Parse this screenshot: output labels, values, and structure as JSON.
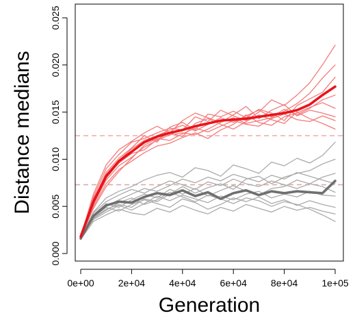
{
  "chart_data": {
    "type": "line",
    "title": "",
    "xlabel": "Generation",
    "ylabel": "Distance medians",
    "xlim": [
      0,
      100000
    ],
    "ylim": [
      0,
      0.025
    ],
    "grid": false,
    "x_ticks": [
      {
        "value": 0,
        "label": "0e+00"
      },
      {
        "value": 20000,
        "label": "2e+04"
      },
      {
        "value": 40000,
        "label": "4e+04"
      },
      {
        "value": 60000,
        "label": "6e+04"
      },
      {
        "value": 80000,
        "label": "8e+04"
      },
      {
        "value": 100000,
        "label": "1e+05"
      }
    ],
    "y_ticks": [
      {
        "value": 0.0,
        "label": "0.000"
      },
      {
        "value": 0.005,
        "label": "0.005"
      },
      {
        "value": 0.01,
        "label": "0.010"
      },
      {
        "value": 0.015,
        "label": "0.015"
      },
      {
        "value": 0.02,
        "label": "0.020"
      },
      {
        "value": 0.025,
        "label": "0.025"
      }
    ],
    "x": [
      0,
      5000,
      10000,
      15000,
      20000,
      25000,
      30000,
      35000,
      40000,
      45000,
      50000,
      55000,
      60000,
      65000,
      70000,
      75000,
      80000,
      85000,
      90000,
      95000,
      100000
    ],
    "colors": {
      "red_mean": "#e8141b",
      "red_rep": "#f37a7a",
      "gray_mean": "#6f6f6f",
      "gray_rep": "#a9a9a9",
      "red_ref": "#f4a6a6",
      "gray_ref": "#e0a8a8"
    },
    "reference_lines": [
      {
        "y": 0.0125,
        "color_key": "red_ref"
      },
      {
        "y": 0.0073,
        "color_key": "gray_ref"
      }
    ],
    "series": [
      {
        "group": "red",
        "role": "mean",
        "values": [
          0.0018,
          0.0055,
          0.0082,
          0.0098,
          0.0108,
          0.0118,
          0.0124,
          0.0128,
          0.0131,
          0.0135,
          0.0138,
          0.0141,
          0.0142,
          0.0143,
          0.0145,
          0.0147,
          0.0149,
          0.0152,
          0.0158,
          0.0168,
          0.0177
        ]
      },
      {
        "group": "red",
        "role": "replicate",
        "values": [
          0.0017,
          0.006,
          0.009,
          0.0105,
          0.0118,
          0.0122,
          0.0128,
          0.0133,
          0.0131,
          0.0145,
          0.014,
          0.0152,
          0.0146,
          0.0141,
          0.015,
          0.0163,
          0.0157,
          0.0168,
          0.0181,
          0.02,
          0.0221
        ]
      },
      {
        "group": "red",
        "role": "replicate",
        "values": [
          0.0018,
          0.0052,
          0.0078,
          0.0093,
          0.0102,
          0.0113,
          0.012,
          0.0126,
          0.0128,
          0.0126,
          0.0132,
          0.0139,
          0.0144,
          0.0138,
          0.0141,
          0.0144,
          0.0151,
          0.0159,
          0.017,
          0.0186,
          0.02
        ]
      },
      {
        "group": "red",
        "role": "replicate",
        "values": [
          0.0019,
          0.0057,
          0.0086,
          0.0101,
          0.0112,
          0.0125,
          0.0118,
          0.0134,
          0.0139,
          0.0131,
          0.0148,
          0.0145,
          0.0151,
          0.0144,
          0.0153,
          0.0149,
          0.0141,
          0.0157,
          0.0164,
          0.0171,
          0.0187
        ]
      },
      {
        "group": "red",
        "role": "replicate",
        "values": [
          0.0016,
          0.005,
          0.0074,
          0.0089,
          0.0098,
          0.0107,
          0.0114,
          0.0117,
          0.0123,
          0.0128,
          0.0122,
          0.0131,
          0.0137,
          0.0147,
          0.0139,
          0.0136,
          0.0145,
          0.0149,
          0.0155,
          0.016,
          0.0154
        ]
      },
      {
        "group": "red",
        "role": "replicate",
        "values": [
          0.0018,
          0.0063,
          0.0094,
          0.011,
          0.0119,
          0.0128,
          0.0135,
          0.0128,
          0.0141,
          0.0149,
          0.0144,
          0.0139,
          0.0147,
          0.0156,
          0.0143,
          0.0152,
          0.0158,
          0.0146,
          0.0152,
          0.0149,
          0.0145
        ]
      },
      {
        "group": "red",
        "role": "replicate",
        "values": [
          0.0017,
          0.0054,
          0.008,
          0.0096,
          0.0106,
          0.011,
          0.0121,
          0.0128,
          0.0124,
          0.0138,
          0.0143,
          0.0137,
          0.0132,
          0.014,
          0.0147,
          0.0142,
          0.0138,
          0.015,
          0.0143,
          0.0138,
          0.0132
        ]
      },
      {
        "group": "red",
        "role": "replicate",
        "values": [
          0.0019,
          0.0058,
          0.0084,
          0.0099,
          0.0111,
          0.012,
          0.0125,
          0.0131,
          0.0136,
          0.013,
          0.0137,
          0.0144,
          0.0139,
          0.0146,
          0.0152,
          0.0145,
          0.0153,
          0.0147,
          0.0154,
          0.0163,
          0.0168
        ]
      },
      {
        "group": "red",
        "role": "replicate",
        "values": [
          0.0017,
          0.0048,
          0.0071,
          0.0087,
          0.0101,
          0.0115,
          0.0122,
          0.012,
          0.0127,
          0.0133,
          0.0129,
          0.0135,
          0.0141,
          0.0137,
          0.0135,
          0.0143,
          0.0148,
          0.0142,
          0.014,
          0.0146,
          0.0141
        ]
      },
      {
        "group": "gray",
        "role": "mean",
        "values": [
          0.0016,
          0.004,
          0.0051,
          0.0055,
          0.0054,
          0.006,
          0.0064,
          0.0062,
          0.0067,
          0.0061,
          0.0065,
          0.0058,
          0.0064,
          0.0067,
          0.0062,
          0.0066,
          0.0064,
          0.0066,
          0.0065,
          0.0064,
          0.0077
        ]
      },
      {
        "group": "gray",
        "role": "replicate",
        "values": [
          0.0016,
          0.0044,
          0.0059,
          0.0066,
          0.0071,
          0.0078,
          0.0083,
          0.0086,
          0.0081,
          0.0091,
          0.0088,
          0.0082,
          0.0094,
          0.009,
          0.0085,
          0.0097,
          0.0093,
          0.0101,
          0.0096,
          0.0104,
          0.0118
        ]
      },
      {
        "group": "gray",
        "role": "replicate",
        "values": [
          0.0015,
          0.0038,
          0.0047,
          0.0052,
          0.0049,
          0.0058,
          0.0055,
          0.0063,
          0.0071,
          0.0064,
          0.007,
          0.0074,
          0.0068,
          0.0079,
          0.0082,
          0.0074,
          0.0081,
          0.0085,
          0.0088,
          0.0095,
          0.01
        ]
      },
      {
        "group": "gray",
        "role": "replicate",
        "values": [
          0.0016,
          0.0041,
          0.0053,
          0.0049,
          0.0057,
          0.0063,
          0.0059,
          0.0068,
          0.0063,
          0.0069,
          0.0061,
          0.0067,
          0.0072,
          0.0066,
          0.0062,
          0.0069,
          0.0071,
          0.0078,
          0.0074,
          0.0081,
          0.0085
        ]
      },
      {
        "group": "gray",
        "role": "replicate",
        "values": [
          0.0017,
          0.0036,
          0.0044,
          0.0051,
          0.0046,
          0.0053,
          0.0061,
          0.0056,
          0.0062,
          0.0058,
          0.0054,
          0.0061,
          0.0057,
          0.0063,
          0.0066,
          0.0059,
          0.0063,
          0.006,
          0.0066,
          0.0062,
          0.0061
        ]
      },
      {
        "group": "gray",
        "role": "replicate",
        "values": [
          0.0016,
          0.0039,
          0.0049,
          0.0045,
          0.0052,
          0.0057,
          0.0053,
          0.0049,
          0.0058,
          0.0054,
          0.0047,
          0.0052,
          0.0059,
          0.0055,
          0.006,
          0.0053,
          0.0057,
          0.0051,
          0.0056,
          0.0052,
          0.0049
        ]
      },
      {
        "group": "gray",
        "role": "replicate",
        "values": [
          0.0015,
          0.0034,
          0.0041,
          0.0047,
          0.0043,
          0.0041,
          0.0048,
          0.0044,
          0.0051,
          0.0046,
          0.0042,
          0.0049,
          0.0045,
          0.0052,
          0.0048,
          0.0044,
          0.005,
          0.0046,
          0.0049,
          0.0045,
          0.0042
        ]
      },
      {
        "group": "gray",
        "role": "replicate",
        "values": [
          0.0016,
          0.0043,
          0.0055,
          0.0062,
          0.0068,
          0.0064,
          0.0071,
          0.0077,
          0.0073,
          0.0068,
          0.0076,
          0.0072,
          0.0079,
          0.0074,
          0.0071,
          0.0077,
          0.0073,
          0.0069,
          0.0074,
          0.0071,
          0.0065
        ]
      },
      {
        "group": "gray",
        "role": "replicate",
        "values": [
          0.0017,
          0.0037,
          0.0046,
          0.0054,
          0.0059,
          0.0052,
          0.0057,
          0.0065,
          0.006,
          0.0055,
          0.0062,
          0.0058,
          0.0053,
          0.0059,
          0.0056,
          0.005,
          0.0055,
          0.0052,
          0.0047,
          0.0041,
          0.0034
        ]
      },
      {
        "group": "gray",
        "role": "replicate",
        "values": [
          0.0016,
          0.004,
          0.005,
          0.0057,
          0.0063,
          0.0069,
          0.0066,
          0.0072,
          0.0079,
          0.0075,
          0.0081,
          0.0077,
          0.0084,
          0.008,
          0.0076,
          0.0083,
          0.0079,
          0.0086,
          0.0082,
          0.0078,
          0.0074
        ]
      }
    ]
  }
}
